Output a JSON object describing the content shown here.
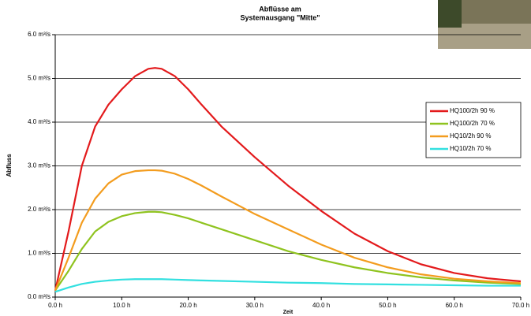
{
  "chart_data": {
    "type": "line",
    "title": [
      "Abflüsse am",
      "Systemausgang \"Mitte\""
    ],
    "x_label": "Zeit",
    "y_label": "Abfluss",
    "x": [
      0,
      2,
      4,
      6,
      8,
      10,
      12,
      14,
      15,
      16,
      18,
      20,
      22,
      25,
      30,
      35,
      40,
      45,
      50,
      55,
      60,
      65,
      70
    ],
    "series": [
      {
        "name": "HQ100/2h 90 %",
        "color": "#e31a1c",
        "values": [
          0.15,
          1.5,
          3.0,
          3.9,
          4.4,
          4.75,
          5.05,
          5.22,
          5.24,
          5.22,
          5.05,
          4.75,
          4.4,
          3.9,
          3.2,
          2.55,
          1.97,
          1.45,
          1.05,
          0.75,
          0.55,
          0.43,
          0.36
        ]
      },
      {
        "name": "HQ100/2h 70 %",
        "color": "#8fc31f",
        "values": [
          0.15,
          0.6,
          1.1,
          1.5,
          1.72,
          1.85,
          1.92,
          1.95,
          1.95,
          1.94,
          1.88,
          1.8,
          1.7,
          1.55,
          1.3,
          1.05,
          0.85,
          0.68,
          0.55,
          0.45,
          0.38,
          0.33,
          0.3
        ]
      },
      {
        "name": "HQ10/2h 90 %",
        "color": "#f39c1e",
        "values": [
          0.15,
          0.9,
          1.7,
          2.25,
          2.6,
          2.8,
          2.88,
          2.9,
          2.9,
          2.89,
          2.82,
          2.7,
          2.55,
          2.3,
          1.9,
          1.55,
          1.2,
          0.9,
          0.68,
          0.52,
          0.42,
          0.36,
          0.32
        ]
      },
      {
        "name": "HQ10/2h 70 %",
        "color": "#33e0e0",
        "values": [
          0.12,
          0.22,
          0.3,
          0.35,
          0.38,
          0.4,
          0.41,
          0.41,
          0.41,
          0.41,
          0.4,
          0.39,
          0.38,
          0.37,
          0.35,
          0.33,
          0.32,
          0.3,
          0.29,
          0.28,
          0.27,
          0.26,
          0.26
        ]
      }
    ],
    "xlim": [
      0,
      70
    ],
    "xticks": [
      {
        "value": 0,
        "label": "0.0 h"
      },
      {
        "value": 10,
        "label": "10.0 h"
      },
      {
        "value": 20,
        "label": "20.0 h"
      },
      {
        "value": 30,
        "label": "30.0 h"
      },
      {
        "value": 40,
        "label": "40.0 h"
      },
      {
        "value": 50,
        "label": "50.0 h"
      },
      {
        "value": 60,
        "label": "60.0 h"
      },
      {
        "value": 70,
        "label": "70.0 h"
      }
    ],
    "ylim": [
      0,
      6
    ],
    "yticks": [
      {
        "value": 0,
        "label": "0.0 m³/s"
      },
      {
        "value": 1,
        "label": "1.0 m³/s"
      },
      {
        "value": 2,
        "label": "2.0 m³/s"
      },
      {
        "value": 3,
        "label": "3.0 m³/s"
      },
      {
        "value": 4,
        "label": "4.0 m³/s"
      },
      {
        "value": 5,
        "label": "5.0 m³/s"
      },
      {
        "value": 6,
        "label": "6.0 m³/s"
      }
    ],
    "grid": true,
    "legend": "right"
  }
}
